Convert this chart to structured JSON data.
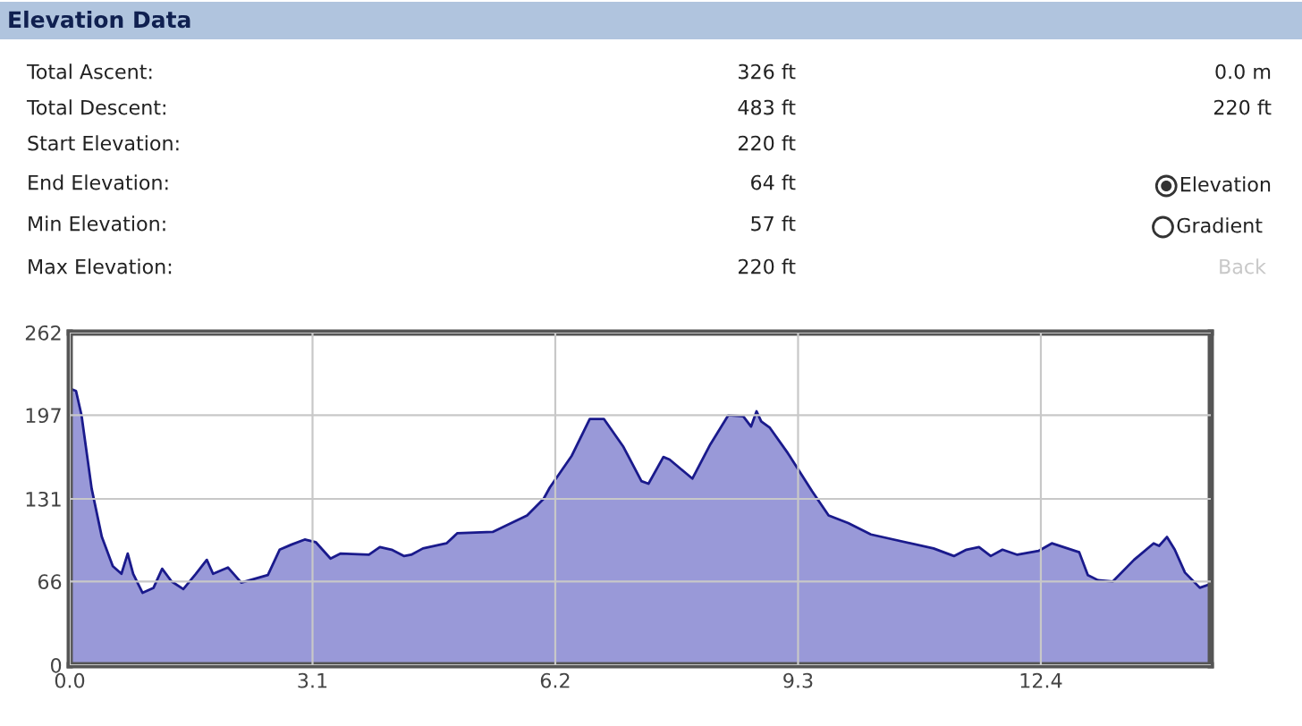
{
  "chart_data": [
    {
      "type": "other",
      "title": "Elevation Data",
      "annotations": [
        "Total Ascent:",
        "326 ft",
        "0.0 m",
        "Total Descent:",
        "483 ft",
        "220 ft",
        "Start Elevation:",
        "220 ft",
        "End Elevation:",
        "64 ft",
        "Elevation",
        "Min Elevation:",
        "57 ft",
        "Gradient",
        "Max Elevation:",
        "220 ft",
        "Back"
      ]
    },
    {
      "type": "area",
      "color": "#9999d8",
      "x": [
        0,
        0.08,
        0.15,
        0.28,
        0.41,
        0.55,
        0.66,
        0.74,
        0.81,
        0.93,
        1.07,
        1.18,
        1.3,
        1.45,
        1.61,
        1.75,
        1.83,
        2.02,
        2.19,
        2.53,
        2.68,
        2.83,
        3.0,
        3.14,
        3.33,
        3.46,
        3.82,
        3.96,
        4.11,
        4.27,
        4.36,
        4.51,
        4.81,
        4.95,
        5.4,
        5.84,
        6.05,
        6.13,
        6.41,
        6.64,
        6.82,
        7.07,
        7.3,
        7.39,
        7.58,
        7.66,
        7.95,
        8.18,
        8.41,
        8.6,
        8.7,
        8.77,
        8.83,
        8.94,
        9.17,
        9.48,
        9.69,
        9.94,
        10.23,
        11.03,
        11.29,
        11.45,
        11.61,
        11.76,
        11.91,
        12.1,
        12.37,
        12.54,
        12.89,
        13.0,
        13.13,
        13.32,
        13.59,
        13.84,
        13.91,
        14.01,
        14.11,
        14.24,
        14.43,
        14.57
      ],
      "series": [
        {
          "color": "#1a1a8c",
          "values": [
            218,
            216,
            197,
            139,
            101,
            78,
            72,
            88,
            72,
            57,
            61,
            76,
            66,
            60,
            72,
            83,
            72,
            77,
            65,
            71,
            91,
            95,
            99,
            97,
            84,
            88,
            87,
            93,
            91,
            86,
            87,
            92,
            96,
            104,
            105,
            118,
            131,
            140,
            165,
            194,
            194,
            172,
            145,
            143,
            164,
            162,
            147,
            174,
            197,
            196,
            188,
            200,
            192,
            187,
            167,
            137,
            118,
            112,
            103,
            92,
            86,
            91,
            93,
            86,
            91,
            87,
            90,
            96,
            89,
            71,
            67,
            66,
            83,
            96,
            94,
            101,
            91,
            73,
            61,
            64
          ]
        }
      ],
      "xlim": [
        0,
        14.57
      ],
      "ylim": [
        0,
        262
      ],
      "xticks": [
        {
          "value": 0,
          "label": "0.0"
        },
        3.1,
        6.2,
        9.3,
        12.4
      ],
      "yticks": [
        0,
        66,
        131,
        197,
        262
      ],
      "grid": true
    }
  ]
}
